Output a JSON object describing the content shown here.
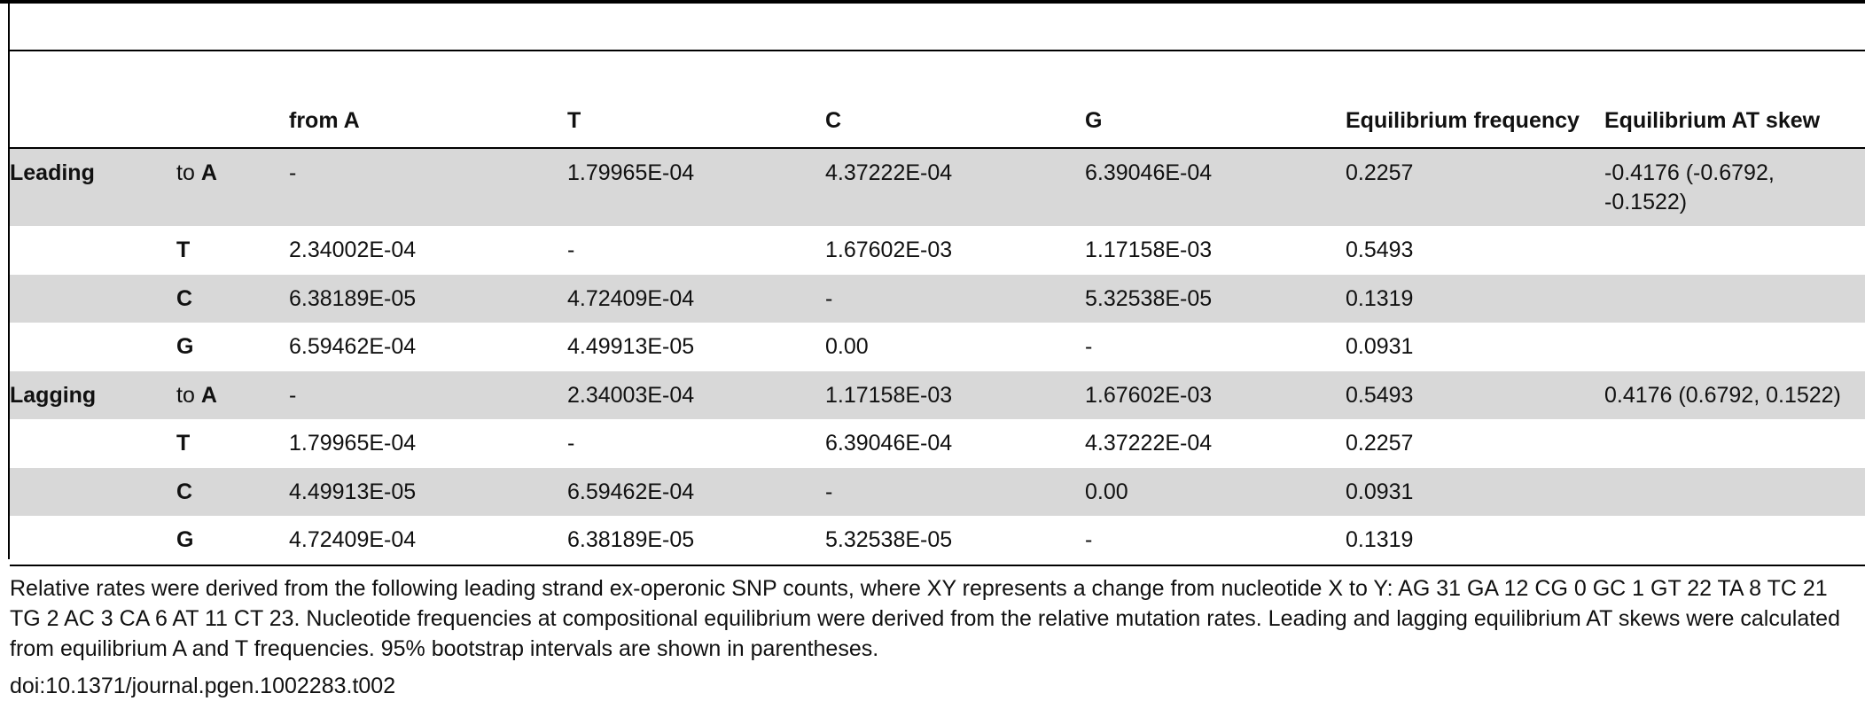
{
  "table": {
    "header": [
      "from A",
      "T",
      "C",
      "G",
      "Equilibrium frequency",
      "Equilibrium AT skew"
    ],
    "groups": [
      {
        "strand": "Leading",
        "rows": [
          {
            "prefix": "to",
            "nucleotide": "A",
            "cells": [
              "-",
              "1.79965E-04",
              "4.37222E-04",
              "6.39046E-04",
              "0.2257",
              "-0.4176 (-0.6792, -0.1522)"
            ]
          },
          {
            "nucleotide": "T",
            "cells": [
              "2.34002E-04",
              "-",
              "1.67602E-03",
              "1.17158E-03",
              "0.5493"
            ]
          },
          {
            "nucleotide": "C",
            "cells": [
              "6.38189E-05",
              "4.72409E-04",
              "-",
              "5.32538E-05",
              "0.1319"
            ]
          },
          {
            "nucleotide": "G",
            "cells": [
              "6.59462E-04",
              "4.49913E-05",
              "0.00",
              "-",
              "0.0931"
            ]
          }
        ]
      },
      {
        "strand": "Lagging",
        "rows": [
          {
            "prefix": "to",
            "nucleotide": "A",
            "cells": [
              "-",
              "2.34003E-04",
              "1.17158E-03",
              "1.67602E-03",
              "0.5493",
              "0.4176 (0.6792, 0.1522)"
            ]
          },
          {
            "nucleotide": "T",
            "cells": [
              "1.79965E-04",
              "-",
              "6.39046E-04",
              "4.37222E-04",
              "0.2257"
            ]
          },
          {
            "nucleotide": "C",
            "cells": [
              "4.49913E-05",
              "6.59462E-04",
              "-",
              "0.00",
              "0.0931"
            ]
          },
          {
            "nucleotide": "G",
            "cells": [
              "4.72409E-04",
              "6.38189E-05",
              "5.32538E-05",
              "-",
              "0.1319"
            ]
          }
        ]
      }
    ]
  },
  "footnote": "Relative rates were derived from the following leading strand ex-operonic SNP counts, where XY represents a change from nucleotide X to Y: AG 31 GA 12 CG 0 GC 1 GT 22 TA 8 TC 21 TG 2 AC 3 CA 6 AT 11 CT 23. Nucleotide frequencies at compositional equilibrium were derived from the relative mutation rates. Leading and lagging equilibrium AT skews were calculated from equilibrium A and T frequencies. 95% bootstrap intervals are shown in parentheses.",
  "doi": "doi:10.1371/journal.pgen.1002283.t002"
}
